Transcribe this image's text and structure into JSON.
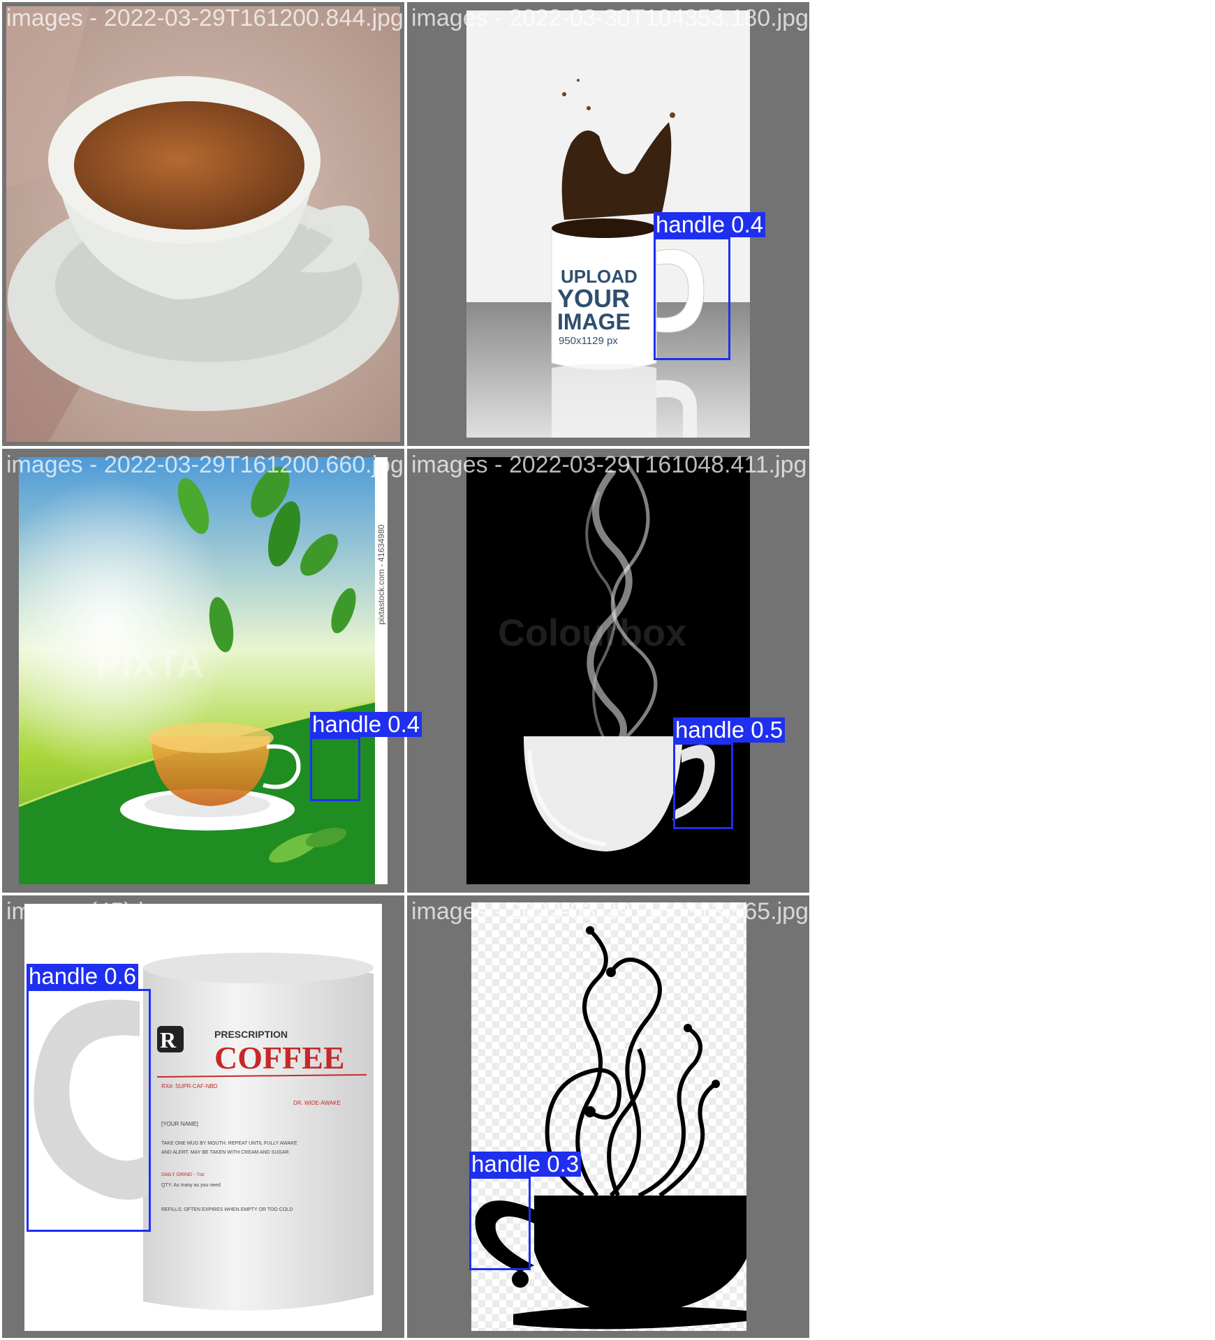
{
  "colors": {
    "cell_background": "#737373",
    "detection_box": "#1f2ff0",
    "filename_text": "#ffffff"
  },
  "cells": [
    {
      "filename": "images - 2022-03-29T161200.844.jpg",
      "image_subject": "white teacup with tea on a saucer",
      "detections": []
    },
    {
      "filename": "images - 2022-03-30T104353.180.jpg",
      "image_subject": "white mug with coffee splash",
      "mug_text": {
        "line1": "UPLOAD",
        "line2": "YOUR",
        "line3": "IMAGE",
        "line4": "950x1129 px"
      },
      "detections": [
        {
          "class": "handle",
          "confidence": "0.4",
          "label": "handle 0.4"
        }
      ]
    },
    {
      "filename": "images - 2022-03-29T161200.660.jpg",
      "image_subject": "glass teacup with green tea leaves",
      "watermark": "PIXTA",
      "side_text": "pixtastock.com - 41634980",
      "detections": [
        {
          "class": "handle",
          "confidence": "0.4",
          "label": "handle 0.4"
        }
      ]
    },
    {
      "filename": "images - 2022-03-29T161048.411.jpg",
      "image_subject": "white cup with smoke on black background",
      "watermark": "Colourbox",
      "detections": [
        {
          "class": "handle",
          "confidence": "0.5",
          "label": "handle 0.5"
        }
      ]
    },
    {
      "filename": "images (45).jpg",
      "image_subject": "white prescription coffee mug",
      "mug_text": {
        "brand": "PRESCRIPTION",
        "title": "COFFEE",
        "rx": "RX#: SUPR-CAF-NBD",
        "doctor": "DR. WIDE-AWAKE",
        "name": "[YOUR NAME]",
        "instructions1": "TAKE ONE MUG BY MOUTH. REPEAT UNTIL FULLY AWAKE",
        "instructions2": "AND ALERT. MAY BE TAKEN WITH CREAM AND SUGAR.",
        "daily": "DAILY GRIND - 7oz",
        "qty": "QTY: As many as you need",
        "refills": "REFILLS: OFTEN EXPIRES WHEN EMPTY OR TOO COLD"
      },
      "detections": [
        {
          "class": "handle",
          "confidence": "0.6",
          "label": "handle 0.6"
        }
      ]
    },
    {
      "filename": "images - 2022-03-29T160313.565.jpg",
      "image_subject": "black cup silhouette with swirling steam",
      "detections": [
        {
          "class": "handle",
          "confidence": "0.3",
          "label": "handle 0.3"
        }
      ]
    }
  ]
}
